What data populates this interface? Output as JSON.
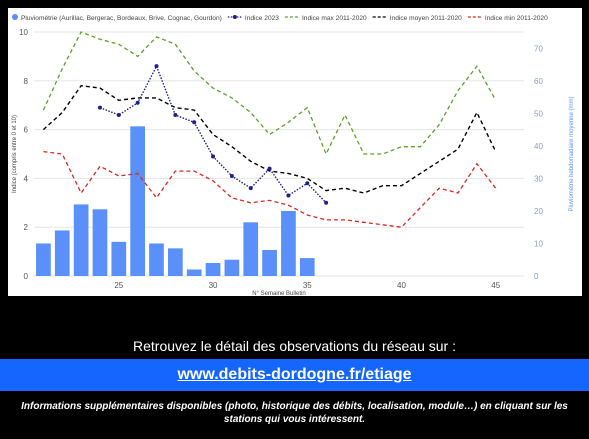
{
  "chart_data": {
    "type": "bar+line",
    "legend": {
      "placement": "top-left",
      "entries": [
        {
          "name": "Pluviométrie (Aurillac, Bergerac, Bordeaux, Brive, Cognac, Gourdon)",
          "color": "#5b8ff9",
          "style": "bar"
        },
        {
          "name": "Indice 2023",
          "color": "#1f1f8f",
          "style": "dotted-marker"
        },
        {
          "name": "Indice max 2011-2020",
          "color": "#5aa02c",
          "style": "dashed"
        },
        {
          "name": "Indice moyen 2011-2020",
          "color": "#000000",
          "style": "dashed"
        },
        {
          "name": "Indice min 2011-2020",
          "color": "#d62a1e",
          "style": "dashed"
        }
      ]
    },
    "xlabel": "N° Semaine Bulletin",
    "ylabel_left": "Indice (compris entre 0 et 10)",
    "ylabel_right": "Pluviométrie hebdomadaire moyenne (mm)",
    "xlim": [
      20.5,
      46.5
    ],
    "ylim_left": [
      0,
      10
    ],
    "ylim_right": [
      0,
      75
    ],
    "x_ticks": [
      25,
      30,
      35,
      40,
      45
    ],
    "y_ticks_left": [
      0,
      2,
      4,
      6,
      8,
      10
    ],
    "y_ticks_right": [
      0,
      10,
      20,
      30,
      40,
      50,
      60,
      70
    ],
    "grid": "horizontal",
    "bars": {
      "name": "Pluviométrie (Aurillac, Bergerac, Bordeaux, Brive, Cognac, Gourdon)",
      "axis": "right",
      "x": [
        21,
        22,
        23,
        24,
        25,
        26,
        27,
        28,
        29,
        30,
        31,
        32,
        33,
        34,
        35
      ],
      "values": [
        10,
        14,
        22,
        20.5,
        10.5,
        46,
        10,
        8.5,
        2,
        4,
        5,
        16.5,
        8,
        20,
        5.5
      ]
    },
    "series": [
      {
        "name": "Indice 2023",
        "axis": "left",
        "x": [
          24,
          25,
          26,
          27,
          28,
          29,
          30,
          31,
          32,
          33,
          34,
          35,
          36
        ],
        "values": [
          6.9,
          6.6,
          7.1,
          8.6,
          6.6,
          6.3,
          4.9,
          4.1,
          3.6,
          4.4,
          3.3,
          3.8,
          3.0
        ]
      },
      {
        "name": "Indice max 2011-2020",
        "axis": "left",
        "x": [
          21,
          22,
          23,
          24,
          25,
          26,
          27,
          28,
          29,
          30,
          31,
          32,
          33,
          34,
          35,
          36,
          37,
          38,
          39,
          40,
          41,
          42,
          43,
          44,
          45
        ],
        "values": [
          6.8,
          8.5,
          10.0,
          9.7,
          9.5,
          9.0,
          9.8,
          9.5,
          8.4,
          7.7,
          7.3,
          6.7,
          5.8,
          6.3,
          6.9,
          5.0,
          6.6,
          5.0,
          5.0,
          5.3,
          5.3,
          6.2,
          7.6,
          8.6,
          7.2
        ]
      },
      {
        "name": "Indice moyen 2011-2020",
        "axis": "left",
        "x": [
          21,
          22,
          23,
          24,
          25,
          26,
          27,
          28,
          29,
          30,
          31,
          32,
          33,
          34,
          35,
          36,
          37,
          38,
          39,
          40,
          41,
          42,
          43,
          44,
          45
        ],
        "values": [
          6.0,
          6.7,
          7.8,
          7.7,
          7.2,
          7.3,
          7.3,
          6.9,
          6.8,
          5.8,
          5.3,
          4.7,
          4.3,
          4.2,
          4.0,
          3.5,
          3.6,
          3.4,
          3.7,
          3.7,
          4.2,
          4.7,
          5.2,
          6.7,
          5.1
        ]
      },
      {
        "name": "Indice min 2011-2020",
        "axis": "left",
        "x": [
          21,
          22,
          23,
          24,
          25,
          26,
          27,
          28,
          29,
          30,
          31,
          32,
          33,
          34,
          35,
          36,
          37,
          38,
          39,
          40,
          41,
          42,
          43,
          44,
          45
        ],
        "values": [
          5.1,
          5.0,
          3.4,
          4.5,
          4.1,
          4.2,
          3.2,
          4.3,
          4.3,
          3.9,
          3.2,
          3.0,
          3.1,
          2.9,
          2.5,
          2.3,
          2.3,
          2.2,
          2.1,
          2.0,
          2.8,
          3.6,
          3.4,
          4.6,
          3.6
        ]
      }
    ]
  },
  "caption": "Retrouvez le détail des observations du réseau sur :",
  "link": "www.debits-dordogne.fr/etiage",
  "info": "Informations supplémentaires disponibles (photo, historique des débits, localisation, module…) en cliquant sur les stations qui vous intéressent."
}
